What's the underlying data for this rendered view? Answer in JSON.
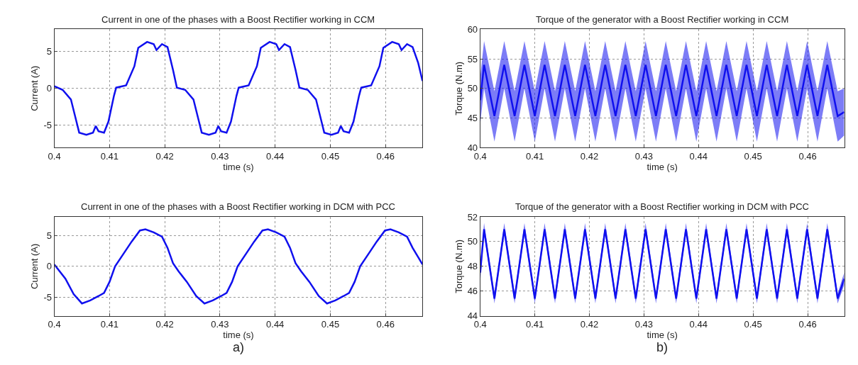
{
  "chart_data": [
    {
      "type": "line",
      "title": "Current in one of the phases with a Boost Rectifier working in CCM",
      "xlabel": "time (s)",
      "ylabel": "Current (A)",
      "xlim": [
        0.4,
        0.4667
      ],
      "xticks": [
        0.4,
        0.41,
        0.42,
        0.43,
        0.44,
        0.45,
        0.46
      ],
      "ylim": [
        -8,
        8
      ],
      "yticks": [
        -5,
        0,
        5
      ],
      "grid": true,
      "line_style": "solid",
      "marker": "none",
      "series": [
        {
          "color": "#1010ee",
          "x": [
            0.4,
            0.4015,
            0.403,
            0.404,
            0.4045,
            0.4058,
            0.407,
            0.4075,
            0.408,
            0.409,
            0.4098,
            0.4108,
            0.4112,
            0.413,
            0.4145,
            0.4152,
            0.4168,
            0.418,
            0.4185,
            0.4195,
            0.4205,
            0.4215,
            0.4222,
            0.4237,
            0.4252,
            0.4262,
            0.4267,
            0.428,
            0.4292,
            0.4297,
            0.4302,
            0.4312,
            0.432,
            0.433,
            0.4334,
            0.4352,
            0.4367,
            0.4374,
            0.439,
            0.4402,
            0.4407,
            0.4417,
            0.4427,
            0.4437,
            0.4444,
            0.4459,
            0.4474,
            0.4484,
            0.4489,
            0.4502,
            0.4514,
            0.4519,
            0.4524,
            0.4534,
            0.4542,
            0.4552,
            0.4556,
            0.4574,
            0.4589,
            0.4596,
            0.4612,
            0.4624,
            0.4629,
            0.4639,
            0.4649,
            0.4659,
            0.4667
          ],
          "values": [
            0.3,
            -0.2,
            -1.5,
            -4.5,
            -6.0,
            -6.3,
            -6.0,
            -5.1,
            -5.8,
            -6.0,
            -4.5,
            -1.0,
            0.1,
            0.4,
            3.0,
            5.5,
            6.3,
            6.0,
            5.2,
            6.0,
            5.6,
            2.5,
            0.1,
            -0.2,
            -1.5,
            -4.5,
            -6.0,
            -6.3,
            -6.0,
            -5.1,
            -5.8,
            -6.0,
            -4.5,
            -1.0,
            0.1,
            0.4,
            3.0,
            5.5,
            6.3,
            6.0,
            5.2,
            6.0,
            5.6,
            2.5,
            0.1,
            -0.2,
            -1.5,
            -4.5,
            -6.0,
            -6.3,
            -6.0,
            -5.1,
            -5.8,
            -6.0,
            -4.5,
            -1.0,
            0.1,
            0.4,
            3.0,
            5.5,
            6.3,
            6.0,
            5.2,
            6.0,
            5.6,
            3.5,
            1.0
          ]
        }
      ]
    },
    {
      "type": "line",
      "title": "Torque of the generator with a Boost Rectifier working in CCM",
      "xlabel": "time (s)",
      "ylabel": "Torque (N.m)",
      "xlim": [
        0.4,
        0.4667
      ],
      "xticks": [
        0.4,
        0.41,
        0.42,
        0.43,
        0.44,
        0.45,
        0.46
      ],
      "ylim": [
        40,
        60
      ],
      "yticks": [
        40,
        45,
        50,
        55,
        60
      ],
      "grid": true,
      "line_style": "solid",
      "marker": "none",
      "series": [
        {
          "color": "#1010ee",
          "x": [
            0.4,
            0.4007,
            0.4026,
            0.4044,
            0.4063,
            0.4081,
            0.41,
            0.4118,
            0.4137,
            0.4155,
            0.4174,
            0.4192,
            0.4211,
            0.4229,
            0.4248,
            0.4266,
            0.4285,
            0.4303,
            0.4322,
            0.434,
            0.4359,
            0.4377,
            0.4396,
            0.4414,
            0.4433,
            0.4451,
            0.447,
            0.4488,
            0.4507,
            0.4525,
            0.4544,
            0.4562,
            0.4581,
            0.4599,
            0.4618,
            0.4636,
            0.4655,
            0.4667
          ],
          "values": [
            48,
            54,
            45.3,
            54,
            45.3,
            54,
            45.3,
            54,
            45.3,
            54,
            45.3,
            54,
            45.3,
            54,
            45.3,
            54,
            45.3,
            54,
            45.3,
            54,
            45.3,
            54,
            45.3,
            54,
            45.3,
            54,
            45.3,
            54,
            45.3,
            54,
            45.3,
            54,
            45.3,
            54,
            45.3,
            54,
            45.3,
            46
          ],
          "lower": [
            44,
            50,
            41,
            50,
            41,
            50,
            41,
            50,
            41,
            50,
            41,
            50,
            41,
            50,
            41,
            50,
            41,
            50,
            41,
            50,
            41,
            50,
            41,
            50,
            41,
            50,
            41,
            50,
            41,
            50,
            41,
            50,
            41,
            50,
            41,
            50,
            41,
            42
          ],
          "upper": [
            52,
            58,
            49.5,
            58,
            49.5,
            58,
            49.5,
            58,
            49.5,
            58,
            49.5,
            58,
            49.5,
            58,
            49.5,
            58,
            49.5,
            58,
            49.5,
            58,
            49.5,
            58,
            49.5,
            58,
            49.5,
            58,
            49.5,
            58,
            49.5,
            58,
            49.5,
            58,
            49.5,
            58,
            49.5,
            58,
            49.5,
            50
          ]
        }
      ]
    },
    {
      "type": "line",
      "title": "Current in one of the phases with a Boost Rectifier working in DCM with PCC",
      "xlabel": "time (s)",
      "ylabel": "Current (A)",
      "xlim": [
        0.4,
        0.4667
      ],
      "xticks": [
        0.4,
        0.41,
        0.42,
        0.43,
        0.44,
        0.45,
        0.46
      ],
      "ylim": [
        -8,
        8
      ],
      "yticks": [
        -5,
        0,
        5
      ],
      "grid": true,
      "line_style": "solid",
      "marker": "none",
      "annotations": [
        "a)"
      ],
      "series": [
        {
          "color": "#1010ee",
          "x": [
            0.4,
            0.402,
            0.4035,
            0.405,
            0.4065,
            0.408,
            0.409,
            0.41,
            0.411,
            0.4125,
            0.414,
            0.4155,
            0.4165,
            0.418,
            0.4195,
            0.4205,
            0.4215,
            0.4225,
            0.424,
            0.4257,
            0.4272,
            0.4287,
            0.4302,
            0.4312,
            0.4322,
            0.4332,
            0.4347,
            0.4362,
            0.4377,
            0.4387,
            0.4402,
            0.4417,
            0.4427,
            0.4437,
            0.4447,
            0.4462,
            0.4479,
            0.4494,
            0.4509,
            0.4524,
            0.4534,
            0.4544,
            0.4554,
            0.4569,
            0.4584,
            0.4599,
            0.4609,
            0.4624,
            0.4639,
            0.4649,
            0.4659,
            0.4667
          ],
          "values": [
            0.3,
            -2.0,
            -4.5,
            -6.0,
            -5.5,
            -4.8,
            -4.3,
            -2.5,
            0.0,
            2.0,
            4.0,
            5.8,
            6.0,
            5.5,
            4.8,
            3.0,
            0.5,
            -0.8,
            -2.5,
            -4.8,
            -6.0,
            -5.5,
            -4.8,
            -4.3,
            -2.5,
            0.0,
            2.0,
            4.0,
            5.8,
            6.0,
            5.5,
            4.8,
            3.0,
            0.5,
            -0.8,
            -2.5,
            -4.8,
            -6.0,
            -5.5,
            -4.8,
            -4.3,
            -2.5,
            0.0,
            2.0,
            4.0,
            5.8,
            6.0,
            5.5,
            4.8,
            3.0,
            1.5,
            0.3
          ]
        }
      ]
    },
    {
      "type": "line",
      "title": "Torque of the generator with a Boost Rectifier working in DCM with PCC",
      "xlabel": "time (s)",
      "ylabel": "Torque (N.m)",
      "xlim": [
        0.4,
        0.4667
      ],
      "xticks": [
        0.4,
        0.41,
        0.42,
        0.43,
        0.44,
        0.45,
        0.46
      ],
      "ylim": [
        44,
        52
      ],
      "yticks": [
        44,
        46,
        48,
        50,
        52
      ],
      "grid": true,
      "line_style": "solid",
      "marker": "none",
      "annotations": [
        "b)"
      ],
      "series": [
        {
          "color": "#1010ee",
          "x": [
            0.4,
            0.4007,
            0.4026,
            0.4044,
            0.4063,
            0.4081,
            0.41,
            0.4118,
            0.4137,
            0.4155,
            0.4174,
            0.4192,
            0.4211,
            0.4229,
            0.4248,
            0.4266,
            0.4285,
            0.4303,
            0.4322,
            0.434,
            0.4359,
            0.4377,
            0.4396,
            0.4414,
            0.4433,
            0.4451,
            0.447,
            0.4488,
            0.4507,
            0.4525,
            0.4544,
            0.4562,
            0.4581,
            0.4599,
            0.4618,
            0.4636,
            0.4655,
            0.4667
          ],
          "values": [
            47.5,
            51,
            45.4,
            51,
            45.4,
            51,
            45.4,
            51,
            45.4,
            51,
            45.4,
            51,
            45.4,
            51,
            45.4,
            51,
            45.4,
            51,
            45.4,
            51,
            45.4,
            51,
            45.4,
            51,
            45.4,
            51,
            45.4,
            51,
            45.4,
            51,
            45.4,
            51,
            45.4,
            51,
            45.4,
            51,
            45.4,
            47
          ],
          "lower": [
            46.8,
            50.6,
            45,
            50.6,
            45,
            50.6,
            45,
            50.6,
            45,
            50.6,
            45,
            50.6,
            45,
            50.6,
            45,
            50.6,
            45,
            50.6,
            45,
            50.6,
            45,
            50.6,
            45,
            50.6,
            45,
            50.6,
            45,
            50.6,
            45,
            50.6,
            45,
            50.6,
            45,
            50.6,
            45,
            50.6,
            45,
            46.5
          ],
          "upper": [
            48.2,
            51.5,
            45.8,
            51.5,
            45.8,
            51.5,
            45.8,
            51.5,
            45.8,
            51.5,
            45.8,
            51.5,
            45.8,
            51.5,
            45.8,
            51.5,
            45.8,
            51.5,
            45.8,
            51.5,
            45.8,
            51.5,
            45.8,
            51.5,
            45.8,
            51.5,
            45.8,
            51.5,
            45.8,
            51.5,
            45.8,
            51.5,
            45.8,
            51.5,
            45.8,
            51.5,
            45.8,
            47.5
          ]
        }
      ]
    }
  ]
}
